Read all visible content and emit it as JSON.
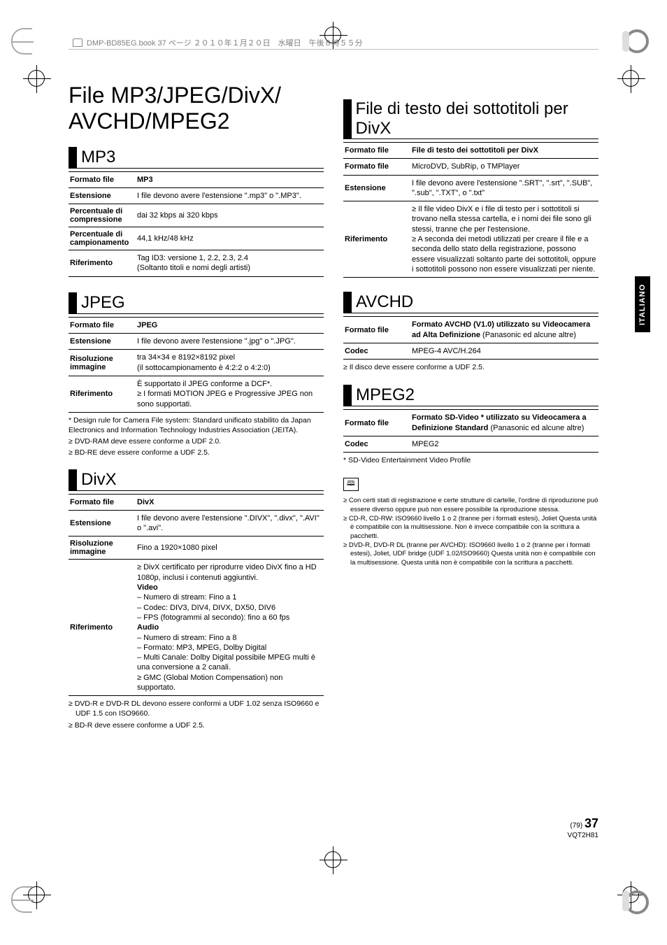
{
  "doc_header": "DMP-BD85EG.book  37 ページ  ２０１０年１月２０日　水曜日　午後８時５５分",
  "main_title": "File MP3/JPEG/DivX/\nAVCHD/MPEG2",
  "side_tab": "ITALIANO",
  "page_footer": {
    "small": "(79)",
    "big": "37",
    "code": "VQT2H81"
  },
  "mp3": {
    "title": "MP3",
    "rows": [
      {
        "k": "Formato file",
        "v": "<b>MP3</b>"
      },
      {
        "k": "Estensione",
        "v": "I file devono avere l'estensione \".mp3\" o \".MP3\"."
      },
      {
        "k": "Percentuale di compressione",
        "v": "dai 32 kbps ai 320 kbps"
      },
      {
        "k": "Percentuale di campionamento",
        "v": "44,1 kHz/48 kHz"
      },
      {
        "k": "Riferimento",
        "v": "Tag ID3: versione 1, 2.2, 2.3, 2.4<br>(Soltanto titoli e nomi degli artisti)"
      }
    ]
  },
  "jpeg": {
    "title": "JPEG",
    "rows": [
      {
        "k": "Formato file",
        "v": "<b>JPEG</b>"
      },
      {
        "k": "Estensione",
        "v": "I file devono avere l'estensione \".jpg\" o \".JPG\"."
      },
      {
        "k": "Risoluzione immagine",
        "v": "tra 34×34 e 8192×8192 pixel<br>(il sottocampionamento è 4:2:2 o 4:2:0)"
      },
      {
        "k": "Riferimento",
        "v": "È supportato il JPEG conforme a DCF*.<br>≥ I formati MOTION JPEG e Progressive JPEG non sono supportati."
      }
    ],
    "footnote": "* Design rule for Camera File system: Standard unificato stabilito da Japan Electronics and Information Technology Industries Association (JEITA).",
    "bullets": [
      "DVD-RAM deve essere conforme a UDF 2.0.",
      "BD-RE deve essere conforme a UDF 2.5."
    ]
  },
  "divx": {
    "title": "DivX",
    "rows": [
      {
        "k": "Formato file",
        "v": "<b>DivX</b>"
      },
      {
        "k": "Estensione",
        "v": "I file devono avere l'estensione \".DIVX\", \".divx\", \".AVI\" o \".avi\"."
      },
      {
        "k": "Risoluzione immagine",
        "v": "Fino a 1920×1080 pixel"
      },
      {
        "k": "Riferimento",
        "v": "≥ DivX certificato per riprodurre video DivX fino a HD 1080p, inclusi i contenuti aggiuntivi.<br><b>Video</b><br>– Numero di stream: Fino a 1<br>– Codec: DIV3, DIV4, DIVX, DX50, DIV6<br>– FPS (fotogrammi al secondo): fino a 60 fps<br><b>Audio</b><br>– Numero di stream: Fino a 8<br>– Formato: MP3, MPEG, Dolby Digital<br>– Multi Canale: Dolby Digital possibile MPEG multi è una conversione a 2 canali.<br>≥ GMC (Global Motion Compensation) non supportato."
      }
    ],
    "bullets": [
      "DVD-R e DVD-R DL devono essere conformi a UDF 1.02 senza ISO9660 e UDF 1.5 con ISO9660.",
      "BD-R deve essere conforme a UDF 2.5."
    ]
  },
  "sub": {
    "title": "File di testo dei sottotitoli per DivX",
    "rows": [
      {
        "k": "Formato file",
        "v": "<b>File di testo dei sottotitoli per DivX</b>"
      },
      {
        "k": "Formato file",
        "v": "MicroDVD, SubRip, o TMPlayer"
      },
      {
        "k": "Estensione",
        "v": "I file devono avere l'estensione \".SRT\", \".srt\", \".SUB\", \".sub\", \".TXT\", o \".txt\""
      },
      {
        "k": "Riferimento",
        "v": "≥ Il file video DivX e i file di testo per i sottotitoli si trovano nella stessa cartella, e i nomi dei file sono gli stessi, tranne che per l'estensione.<br>≥ A seconda dei metodi utilizzati per creare il file e a seconda dello stato della registrazione, possono essere visualizzati soltanto parte dei sottotitoli, oppure i sottotitoli possono non essere visualizzati per niente."
      }
    ]
  },
  "avchd": {
    "title": "AVCHD",
    "rows": [
      {
        "k": "Formato file",
        "v": "<b>Formato AVCHD (V1.0) utilizzato su Videocamera ad Alta Definizione</b> (Panasonic ed alcune altre)"
      },
      {
        "k": "Codec",
        "v": "MPEG-4 AVC/H.264"
      }
    ],
    "bullets": [
      "Il disco deve essere conforme a UDF 2.5."
    ]
  },
  "mpeg2": {
    "title": "MPEG2",
    "rows": [
      {
        "k": "Formato file",
        "v": "<b>Formato SD-Video * utilizzato su Videocamera a Definizione Standard</b> (Panasonic ed alcune altre)"
      },
      {
        "k": "Codec",
        "v": "MPEG2"
      }
    ],
    "footnote": "* SD-Video Entertainment Video Profile"
  },
  "final_notes": [
    "Con certi stati di registrazione e certe strutture di cartelle, l'ordine di riproduzione può essere diverso oppure può non essere possibile la riproduzione stessa.",
    "CD-R, CD-RW: ISO9660 livello 1 o 2 (tranne per i formati estesi), Joliet Questa unità è compatibile con la multisessione. Non è invece compatibile con la scrittura a pacchetti.",
    "DVD-R, DVD-R DL (tranne per AVCHD): ISO9660 livello 1 o 2 (tranne per i formati estesi), Joliet, UDF bridge (UDF 1.02/ISO9660) Questa unità non è compatibile con la multisessione. Questa unità non è compatibile con la scrittura a pacchetti."
  ]
}
